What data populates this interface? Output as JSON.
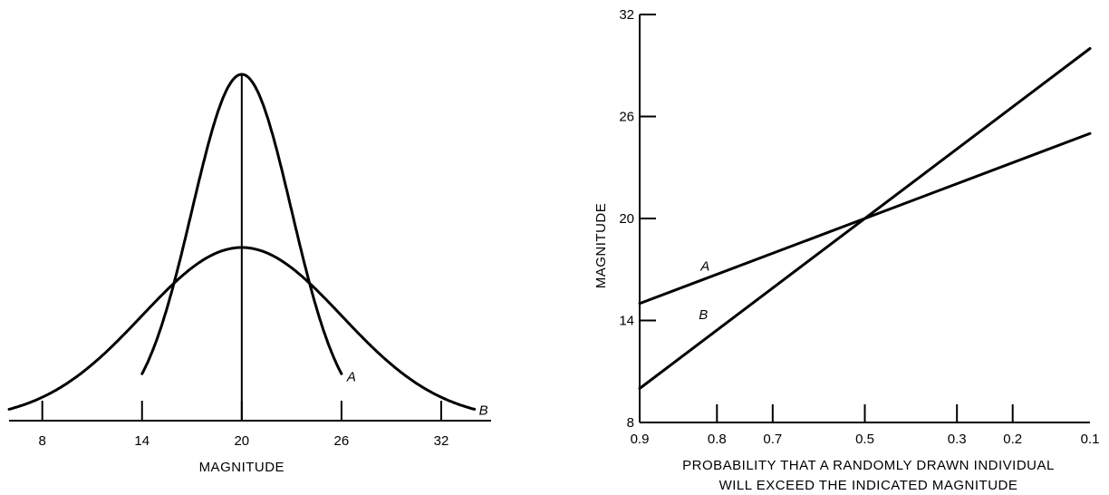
{
  "chart_data": [
    {
      "type": "line",
      "title": "",
      "xlabel": "MAGNITUDE",
      "ylabel": "",
      "xlim": [
        6,
        35
      ],
      "xticks": [
        8,
        14,
        20,
        26,
        32
      ],
      "xtick_labels": [
        "8",
        "14",
        "20",
        "26",
        "32"
      ],
      "vertical_line_at": 20,
      "series": [
        {
          "name": "A",
          "label": "A",
          "mean": 20,
          "sd": 3,
          "x_range": [
            14,
            26
          ],
          "peak_height": 1.0
        },
        {
          "name": "B",
          "label": "B",
          "mean": 20,
          "sd": 6,
          "x_range": [
            6,
            34
          ],
          "peak_height": 0.5
        }
      ]
    },
    {
      "type": "line",
      "title": "",
      "xlabel": "PROBABILITY THAT A RANDOMLY DRAWN INDIVIDUAL WILL EXCEED THE INDICATED MAGNITUDE",
      "xlabel_lines": [
        "PROBABILITY THAT A RANDOMLY DRAWN INDIVIDUAL",
        "WILL EXCEED THE INDICATED MAGNITUDE"
      ],
      "ylabel": "MAGNITUDE",
      "x_scale": "normal-probability",
      "xticks": [
        0.9,
        0.8,
        0.7,
        0.5,
        0.3,
        0.2,
        0.1
      ],
      "xtick_labels": [
        "0.9",
        "0.8",
        "0.7",
        "0.5",
        "0.3",
        "0.2",
        "0.1"
      ],
      "ylim": [
        8,
        32
      ],
      "yticks": [
        8,
        14,
        20,
        26,
        32
      ],
      "ytick_labels": [
        "8",
        "14",
        "20",
        "26",
        "32"
      ],
      "series": [
        {
          "name": "A",
          "label": "A",
          "x": [
            0.9,
            0.1
          ],
          "y": [
            15,
            25
          ]
        },
        {
          "name": "B",
          "label": "B",
          "x": [
            0.9,
            0.1
          ],
          "y": [
            10,
            30
          ]
        }
      ]
    }
  ]
}
